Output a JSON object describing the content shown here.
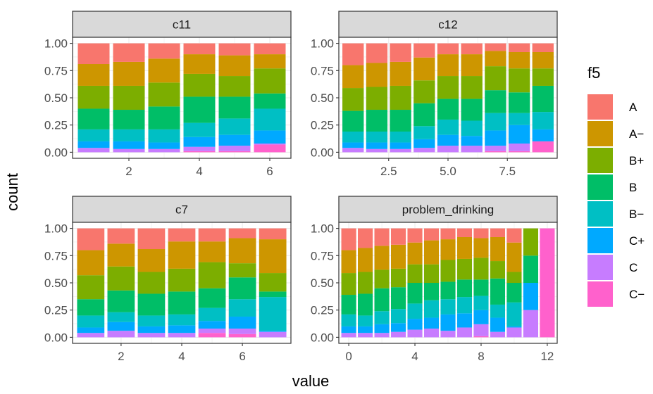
{
  "figure": {
    "xlabel": "value",
    "ylabel": "count"
  },
  "legend": {
    "title": "f5",
    "items": [
      {
        "label": "A",
        "color": "#F8766D"
      },
      {
        "label": "A−",
        "color": "#CD9600"
      },
      {
        "label": "B+",
        "color": "#7CAE00"
      },
      {
        "label": "B",
        "color": "#00BE67"
      },
      {
        "label": "B−",
        "color": "#00BFC4"
      },
      {
        "label": "C+",
        "color": "#00A9FF"
      },
      {
        "label": "C",
        "color": "#C77CFF"
      },
      {
        "label": "C−",
        "color": "#FF61CC"
      }
    ]
  },
  "chart_data": [
    {
      "type": "bar",
      "stacked": "fill",
      "facet": "c11",
      "x": [
        1,
        2,
        3,
        4,
        5,
        6
      ],
      "xlim": [
        0.4,
        6.6
      ],
      "xticks": [
        2,
        4,
        6
      ],
      "ylim": [
        0,
        1
      ],
      "yticks": [
        "0.00",
        "0.25",
        "0.50",
        "0.75",
        "1.00"
      ],
      "series": [
        {
          "name": "A",
          "values": [
            0.19,
            0.17,
            0.14,
            0.1,
            0.11,
            0.1
          ]
        },
        {
          "name": "A−",
          "values": [
            0.2,
            0.22,
            0.22,
            0.18,
            0.19,
            0.13
          ]
        },
        {
          "name": "B+",
          "values": [
            0.21,
            0.22,
            0.22,
            0.21,
            0.19,
            0.23
          ]
        },
        {
          "name": "B",
          "values": [
            0.19,
            0.18,
            0.21,
            0.24,
            0.2,
            0.14
          ]
        },
        {
          "name": "B−",
          "values": [
            0.11,
            0.11,
            0.12,
            0.13,
            0.15,
            0.2
          ]
        },
        {
          "name": "C+",
          "values": [
            0.06,
            0.07,
            0.06,
            0.09,
            0.1,
            0.12
          ]
        },
        {
          "name": "C",
          "values": [
            0.04,
            0.03,
            0.03,
            0.04,
            0.05,
            0.01
          ]
        },
        {
          "name": "C−",
          "values": [
            0.0,
            0.0,
            0.0,
            0.01,
            0.01,
            0.07
          ]
        }
      ]
    },
    {
      "type": "bar",
      "stacked": "fill",
      "facet": "c12",
      "x": [
        1,
        2,
        3,
        4,
        5,
        6,
        7,
        8,
        9
      ],
      "xlim": [
        0.4,
        9.6
      ],
      "xticks": [
        2.5,
        5.0,
        7.5
      ],
      "xticklabels": [
        "2.5",
        "5.0",
        "7.5"
      ],
      "ylim": [
        0,
        1
      ],
      "yticks": [
        "0.00",
        "0.25",
        "0.50",
        "0.75",
        "1.00"
      ],
      "series": [
        {
          "name": "A",
          "values": [
            0.2,
            0.18,
            0.17,
            0.13,
            0.1,
            0.1,
            0.07,
            0.08,
            0.08
          ]
        },
        {
          "name": "A−",
          "values": [
            0.21,
            0.22,
            0.22,
            0.21,
            0.2,
            0.2,
            0.14,
            0.15,
            0.15
          ]
        },
        {
          "name": "B+",
          "values": [
            0.21,
            0.21,
            0.22,
            0.21,
            0.21,
            0.21,
            0.22,
            0.22,
            0.16
          ]
        },
        {
          "name": "B",
          "values": [
            0.19,
            0.2,
            0.2,
            0.21,
            0.19,
            0.2,
            0.21,
            0.19,
            0.24
          ]
        },
        {
          "name": "B−",
          "values": [
            0.1,
            0.1,
            0.1,
            0.12,
            0.14,
            0.14,
            0.16,
            0.11,
            0.16
          ]
        },
        {
          "name": "C+",
          "values": [
            0.05,
            0.06,
            0.06,
            0.08,
            0.1,
            0.09,
            0.14,
            0.17,
            0.11
          ]
        },
        {
          "name": "C",
          "values": [
            0.04,
            0.03,
            0.03,
            0.04,
            0.06,
            0.06,
            0.05,
            0.07,
            0.0
          ]
        },
        {
          "name": "C−",
          "values": [
            0.0,
            0.0,
            0.0,
            0.0,
            0.0,
            0.0,
            0.01,
            0.01,
            0.1
          ]
        }
      ]
    },
    {
      "type": "bar",
      "stacked": "fill",
      "facet": "c7",
      "x": [
        1,
        2,
        3,
        4,
        5,
        6,
        7
      ],
      "xlim": [
        0.4,
        7.6
      ],
      "xticks": [
        2,
        4,
        6
      ],
      "ylim": [
        0,
        1
      ],
      "yticks": [
        "0.00",
        "0.25",
        "0.50",
        "0.75",
        "1.00"
      ],
      "series": [
        {
          "name": "A",
          "values": [
            0.2,
            0.14,
            0.19,
            0.12,
            0.12,
            0.09,
            0.1
          ]
        },
        {
          "name": "A−",
          "values": [
            0.23,
            0.21,
            0.21,
            0.25,
            0.19,
            0.23,
            0.31
          ]
        },
        {
          "name": "B+",
          "values": [
            0.22,
            0.22,
            0.2,
            0.21,
            0.24,
            0.13,
            0.17
          ]
        },
        {
          "name": "B",
          "values": [
            0.15,
            0.2,
            0.2,
            0.21,
            0.18,
            0.2,
            0.05
          ]
        },
        {
          "name": "B−",
          "values": [
            0.11,
            0.09,
            0.1,
            0.1,
            0.12,
            0.16,
            0.31
          ]
        },
        {
          "name": "C+",
          "values": [
            0.05,
            0.08,
            0.06,
            0.07,
            0.07,
            0.11,
            0.01
          ]
        },
        {
          "name": "C",
          "values": [
            0.04,
            0.06,
            0.04,
            0.04,
            0.04,
            0.05,
            0.05
          ]
        },
        {
          "name": "C−",
          "values": [
            0.0,
            0.0,
            0.0,
            0.0,
            0.04,
            0.03,
            0.0
          ]
        }
      ]
    },
    {
      "type": "bar",
      "stacked": "fill",
      "facet": "problem_drinking",
      "x": [
        0,
        1,
        2,
        3,
        4,
        5,
        6,
        7,
        8,
        9,
        10,
        11,
        12
      ],
      "xlim": [
        -0.6,
        12.6
      ],
      "xticks": [
        0,
        4,
        8,
        12
      ],
      "ylim": [
        0,
        1
      ],
      "yticks": [
        "0.00",
        "0.25",
        "0.50",
        "0.75",
        "1.00"
      ],
      "series": [
        {
          "name": "A",
          "values": [
            0.2,
            0.18,
            0.16,
            0.15,
            0.13,
            0.11,
            0.1,
            0.08,
            0.09,
            0.08,
            0.13,
            0.0,
            0.0
          ]
        },
        {
          "name": "A−",
          "values": [
            0.21,
            0.22,
            0.22,
            0.22,
            0.2,
            0.22,
            0.19,
            0.2,
            0.18,
            0.22,
            0.27,
            0.0,
            0.0
          ]
        },
        {
          "name": "B+",
          "values": [
            0.2,
            0.2,
            0.17,
            0.17,
            0.17,
            0.17,
            0.2,
            0.19,
            0.2,
            0.16,
            0.1,
            0.25,
            0.0
          ]
        },
        {
          "name": "B",
          "values": [
            0.18,
            0.2,
            0.21,
            0.2,
            0.19,
            0.16,
            0.16,
            0.16,
            0.15,
            0.24,
            0.18,
            0.25,
            0.0
          ]
        },
        {
          "name": "B−",
          "values": [
            0.11,
            0.1,
            0.12,
            0.13,
            0.14,
            0.16,
            0.14,
            0.15,
            0.13,
            0.12,
            0.22,
            0.0,
            0.0
          ]
        },
        {
          "name": "C+",
          "values": [
            0.06,
            0.06,
            0.08,
            0.08,
            0.1,
            0.1,
            0.15,
            0.13,
            0.13,
            0.13,
            0.01,
            0.25,
            0.0
          ]
        },
        {
          "name": "C",
          "values": [
            0.04,
            0.04,
            0.04,
            0.05,
            0.07,
            0.08,
            0.06,
            0.09,
            0.11,
            0.05,
            0.09,
            0.25,
            0.0
          ]
        },
        {
          "name": "C−",
          "values": [
            0.0,
            0.0,
            0.0,
            0.0,
            0.0,
            0.0,
            0.0,
            0.0,
            0.01,
            0.0,
            0.0,
            0.0,
            1.0
          ]
        }
      ]
    }
  ]
}
